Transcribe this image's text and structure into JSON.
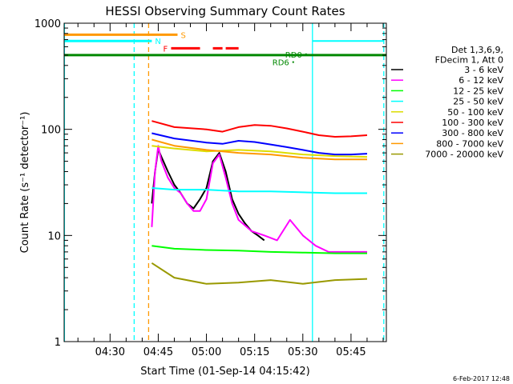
{
  "chart_data": {
    "type": "line",
    "title": "HESSI Observing Summary Count Rates",
    "xlabel": "Start Time (01-Sep-14 04:15:42)",
    "ylabel": "Count Rate (s⁻¹ detector⁻¹)",
    "x_ticks": [
      "04:30",
      "04:45",
      "05:00",
      "05:15",
      "05:30",
      "05:45"
    ],
    "x_tick_minutes": [
      270,
      285,
      300,
      315,
      330,
      345
    ],
    "xlim_minutes": [
      255.7,
      356
    ],
    "y_scale": "log",
    "ylim": [
      1,
      1000
    ],
    "y_ticks": [
      1,
      10,
      100,
      1000
    ],
    "y_tick_labels": [
      "1",
      "10",
      "100",
      "1000"
    ],
    "legend_header": [
      "Det 1,3,6,9,",
      "FDecim 1, Att 0"
    ],
    "legend_position": "right",
    "footer_date": "6-Feb-2017 12:48",
    "series": [
      {
        "name": "3 - 6 keV",
        "color": "#000000",
        "x": [
          283,
          284,
          285,
          286,
          288,
          290,
          292,
          294,
          296,
          298,
          300,
          302,
          304,
          306,
          308,
          310,
          312,
          314,
          316,
          318
        ],
        "y": [
          20,
          40,
          65,
          55,
          40,
          30,
          25,
          20,
          18,
          22,
          28,
          50,
          60,
          40,
          22,
          16,
          13,
          11,
          10,
          9
        ]
      },
      {
        "name": "6 - 12 keV",
        "color": "#ff00ff",
        "x": [
          283,
          284,
          285,
          286,
          288,
          290,
          292,
          294,
          296,
          298,
          300,
          302,
          304,
          306,
          308,
          310,
          314,
          318,
          322,
          326,
          330,
          334,
          338,
          342,
          346,
          350
        ],
        "y": [
          12,
          40,
          70,
          50,
          35,
          28,
          25,
          20,
          17,
          17,
          22,
          48,
          58,
          35,
          20,
          14,
          11,
          10,
          9,
          14,
          10,
          8,
          7,
          7,
          7,
          7
        ]
      },
      {
        "name": "12 - 25 keV",
        "color": "#00ff00",
        "x": [
          283,
          290,
          300,
          310,
          320,
          330,
          340,
          350
        ],
        "y": [
          8,
          7.5,
          7.3,
          7.2,
          7,
          6.9,
          6.8,
          6.8
        ]
      },
      {
        "name": "25 - 50 keV",
        "color": "#00ffff",
        "x": [
          283,
          290,
          300,
          310,
          320,
          330,
          340,
          350
        ],
        "y": [
          28,
          27,
          27,
          26,
          26,
          25.5,
          25,
          25
        ]
      },
      {
        "name": "50 - 100 keV",
        "color": "#dddd00",
        "x": [
          283,
          290,
          300,
          310,
          320,
          330,
          340,
          350
        ],
        "y": [
          70,
          66,
          62,
          64,
          62,
          58,
          56,
          55
        ]
      },
      {
        "name": "100 - 300 keV",
        "color": "#ff0000",
        "x": [
          283,
          290,
          300,
          305,
          310,
          315,
          320,
          325,
          330,
          335,
          340,
          345,
          350
        ],
        "y": [
          120,
          105,
          100,
          95,
          105,
          110,
          108,
          102,
          95,
          88,
          85,
          86,
          88
        ]
      },
      {
        "name": "300 - 800 keV",
        "color": "#0000ff",
        "x": [
          283,
          290,
          300,
          305,
          310,
          315,
          320,
          325,
          330,
          335,
          340,
          345,
          350
        ],
        "y": [
          92,
          82,
          75,
          73,
          78,
          76,
          72,
          68,
          64,
          60,
          58,
          58,
          59
        ]
      },
      {
        "name": "800 - 7000 keV",
        "color": "#ff9900",
        "x": [
          283,
          290,
          300,
          310,
          320,
          330,
          340,
          350
        ],
        "y": [
          80,
          70,
          64,
          60,
          58,
          54,
          52,
          52
        ]
      },
      {
        "name": "7000 - 20000 keV",
        "color": "#999900",
        "x": [
          283,
          290,
          300,
          310,
          320,
          330,
          340,
          350
        ],
        "y": [
          5.5,
          4,
          3.5,
          3.6,
          3.8,
          3.5,
          3.8,
          3.9
        ]
      }
    ],
    "flag_bars": [
      {
        "label": "S",
        "color": "#ff9900",
        "y": 780,
        "x": [
          255.7,
          291
        ]
      },
      {
        "label": "N",
        "color": "#00ffff",
        "y": 680,
        "x": [
          255.7,
          283
        ]
      },
      {
        "label": "F",
        "color": "#ff0000",
        "y": 580,
        "segments": [
          [
            289,
            298
          ],
          [
            302,
            305
          ],
          [
            306,
            310
          ]
        ]
      }
    ],
    "baseline_line": {
      "color": "#008800",
      "y": 500
    },
    "annotations": [
      {
        "text": "RD6",
        "color": "#008800",
        "x": 327,
        "y": 430
      },
      {
        "text": "RD0",
        "color": "#008800",
        "x": 331,
        "y": 510
      }
    ],
    "vertical_lines": [
      {
        "color": "#00ffff",
        "style": "solid",
        "x": 255.8
      },
      {
        "color": "#00ffff",
        "style": "dashed",
        "x": 277.5
      },
      {
        "color": "#ff9900",
        "style": "dashed",
        "x": 282
      },
      {
        "color": "#00ffff",
        "style": "solid",
        "x": 333
      },
      {
        "color": "#00ffff",
        "style": "dashed",
        "x": 355.2
      }
    ]
  }
}
